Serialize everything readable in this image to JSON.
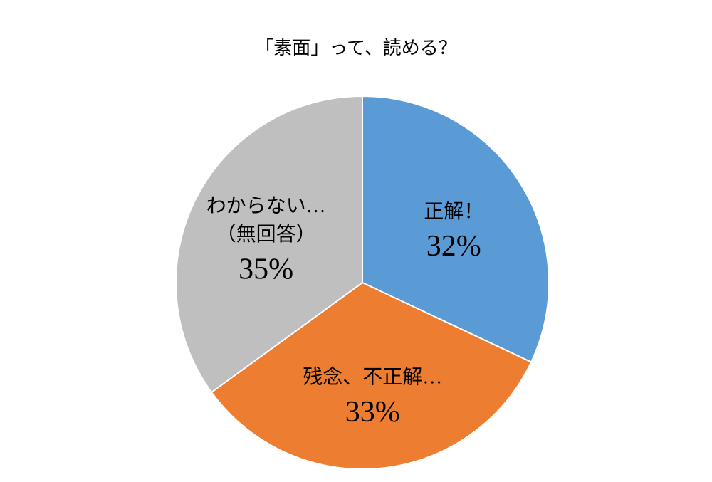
{
  "chart_data": {
    "type": "pie",
    "title": "「素面」って、読める？",
    "categories": [
      "正解！",
      "残念、不正解…",
      "わからない…\n（無回答）"
    ],
    "values": [
      32,
      33,
      35
    ],
    "value_labels": [
      "32%",
      "33%",
      "35%"
    ],
    "colors": [
      "#5b9bd5",
      "#ed7d31",
      "#bfbfbf"
    ]
  }
}
